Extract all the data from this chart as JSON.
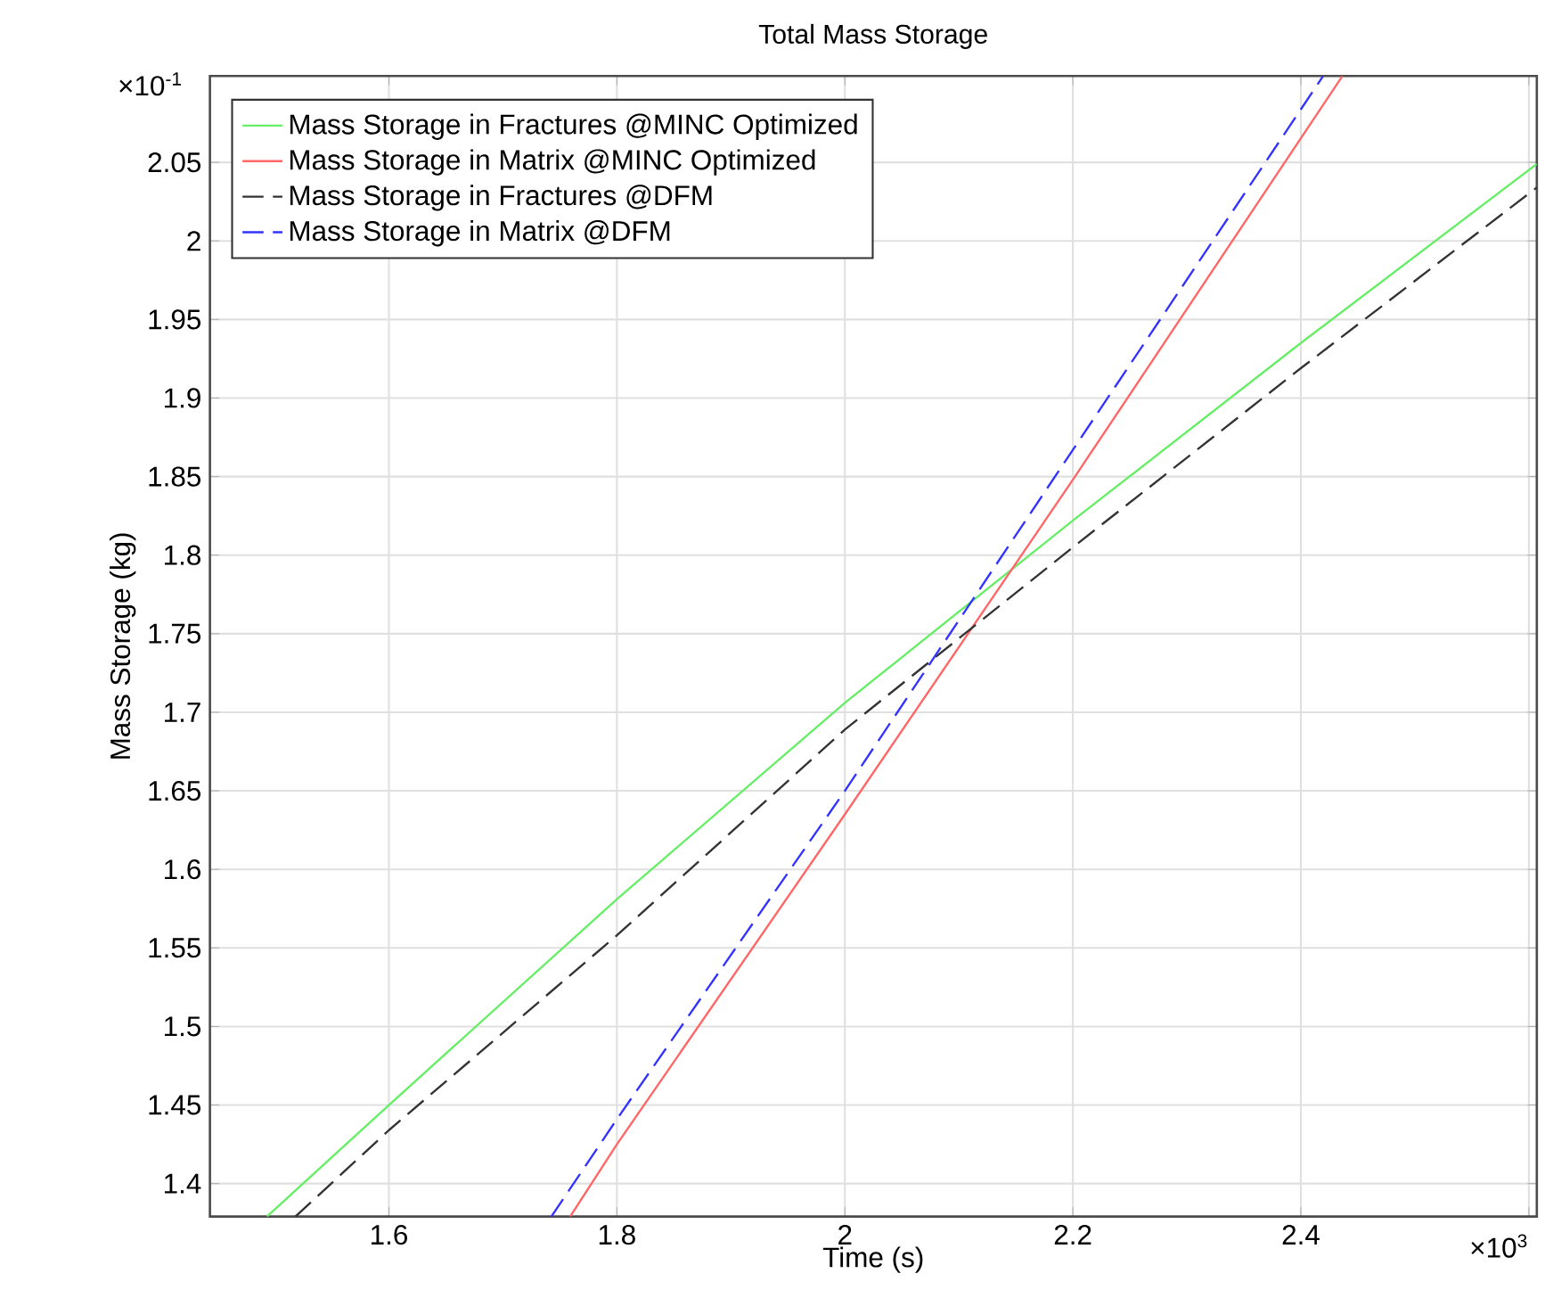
{
  "chart_data": {
    "type": "line",
    "title": "Total Mass Storage",
    "xlabel": "Time (s)",
    "ylabel": "Mass Storage (kg)",
    "xlim": [
      1.443,
      2.607
    ],
    "ylim": [
      1.379,
      2.105
    ],
    "xticks": [
      1.6,
      1.8,
      2,
      2.2,
      2.4,
      {
        "value": 2.6,
        "label": null
      }
    ],
    "yticks": [
      1.4,
      1.45,
      1.5,
      1.55,
      1.6,
      1.65,
      1.7,
      1.75,
      1.8,
      1.85,
      1.9,
      1.95,
      2,
      2.05
    ],
    "grid": true,
    "legend": "top left",
    "marker": "none",
    "annotations": [
      "×10$^{-1}$",
      "×10$^{3}$"
    ],
    "series": [
      {
        "name": "Mass Storage in Fractures @MINC Optimized",
        "color": "#66ee66",
        "line_style": "solid",
        "x": [
          1.493,
          1.6,
          1.8,
          2.0,
          2.2,
          2.4,
          2.607
        ],
        "values": [
          1.379,
          1.45,
          1.581,
          1.706,
          1.822,
          1.935,
          2.049
        ]
      },
      {
        "name": "Mass Storage in Matrix @MINC Optimized",
        "color": "#ff6666",
        "line_style": "solid",
        "x": [
          1.759,
          1.8,
          2.0,
          2.2,
          2.4365
        ],
        "values": [
          1.379,
          1.425,
          1.635,
          1.848,
          2.105
        ]
      },
      {
        "name": "Mass Storage in Fractures @DFM",
        "color": "#333333",
        "line_style": "dashed",
        "x": [
          1.518,
          1.6,
          1.8,
          2.0,
          2.2,
          2.4,
          2.607
        ],
        "values": [
          1.379,
          1.434,
          1.558,
          1.689,
          1.805,
          1.919,
          2.034
        ]
      },
      {
        "name": "Mass Storage in Matrix @DFM",
        "color": "#3333ff",
        "line_style": "dashed",
        "x": [
          1.7425,
          1.8,
          2.0,
          2.2,
          2.4196
        ],
        "values": [
          1.379,
          1.441,
          1.65,
          1.867,
          2.105
        ]
      }
    ]
  }
}
